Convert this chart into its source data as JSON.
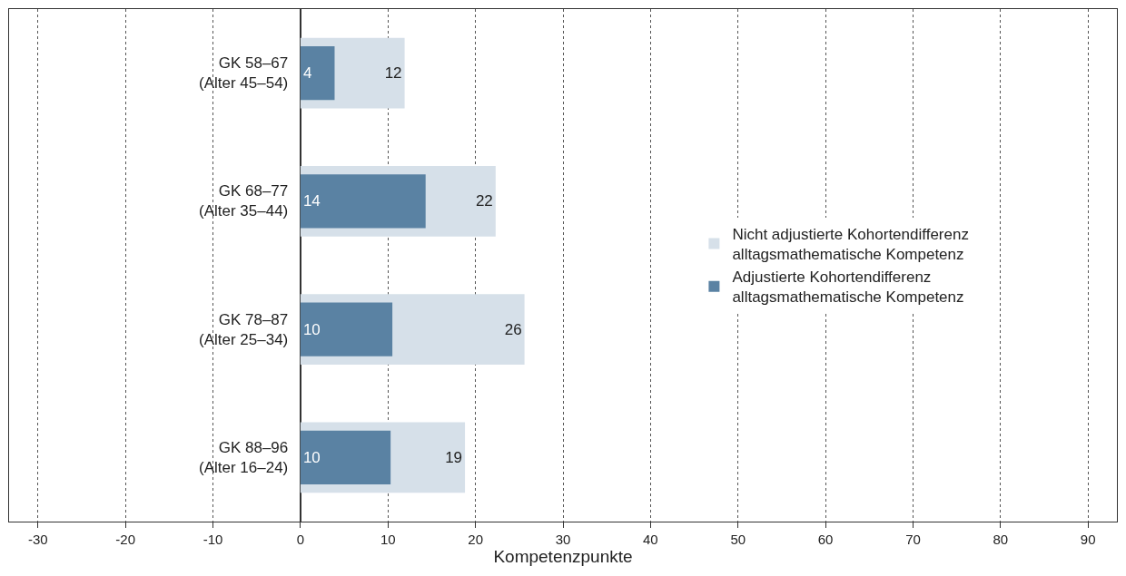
{
  "chart_data": {
    "type": "bar",
    "orientation": "horizontal",
    "xlabel": "Kompetenzpunkte",
    "categories": [
      "GK 58–67\n(Alter 45–54)",
      "GK 68–77\n(Alter 35–44)",
      "GK 78–87\n(Alter 25–34)",
      "GK 88–96\n(Alter 16–24)"
    ],
    "series": [
      {
        "name": "Nicht adjustierte Kohortendifferenz\nalltagsmathematische Kompetenz",
        "color": "#d6e0e9",
        "values": [
          11.9,
          22.3,
          25.6,
          18.8
        ],
        "value_labels": [
          "12",
          "22",
          "26",
          "19"
        ]
      },
      {
        "name": "Adjustierte Kohortendifferenz\nalltagsmathematische Kompetenz",
        "color": "#5a82a3",
        "values": [
          3.9,
          14.3,
          10.5,
          10.3
        ],
        "value_labels": [
          "4",
          "14",
          "10",
          "10"
        ]
      }
    ],
    "xlim": [
      -33.3,
      93.3
    ],
    "xticks": [
      -30,
      -20,
      -10,
      0,
      10,
      20,
      30,
      40,
      50,
      60,
      70,
      80,
      90
    ],
    "grid": "x",
    "legend": "right"
  }
}
